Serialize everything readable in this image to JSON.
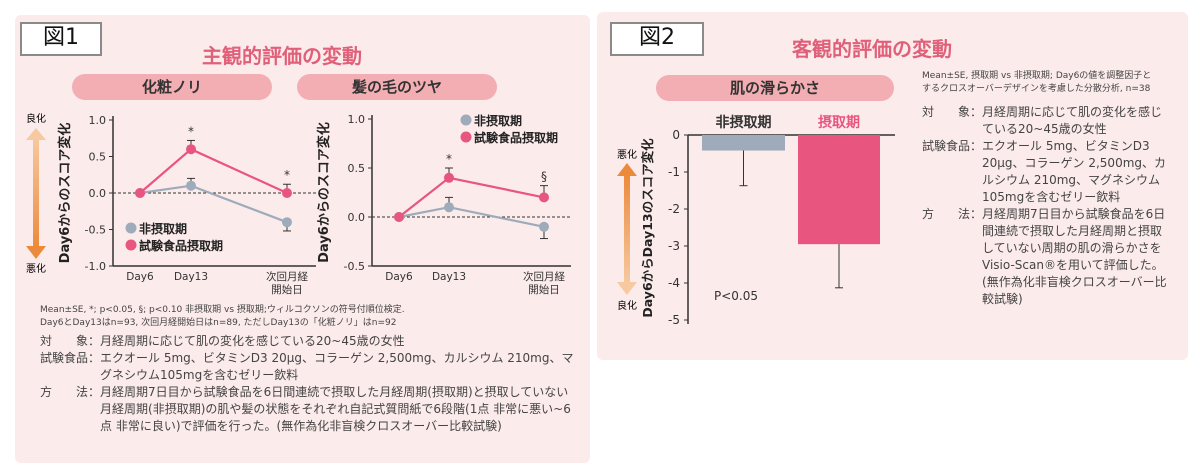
{
  "figure1": {
    "label": "図1",
    "title": "主観的評価の変動",
    "note_lines": [
      "Mean±SE, *; p<0.05, §; p<0.10 非摂取期 vs 摂取期;ウィルコクソンの符号付順位検定.",
      "Day6とDay13はn=93, 次回月経開始日はn=89, ただしDay13の「化粧ノリ」はn=92"
    ],
    "details": [
      {
        "key": "対　　象：",
        "value": "月経周期に応じて肌の変化を感じている20~45歳の女性"
      },
      {
        "key": "試験食品：",
        "value": "エクオール 5mg、ビタミンD3 20μg、コラーゲン 2,500mg、カルシウム 210mg、マグネシウム105mgを含むゼリー飲料"
      },
      {
        "key": "方　　法：",
        "value": "月経周期7日目から試験食品を6日間連続で摂取した月経周期(摂取期)と摂取していない月経周期(非摂取期)の肌や髪の状態をそれぞれ自記式質問紙で6段階(1点 非常に悪い~6点 非常に良い)で評価を行った。(無作為化非盲検クロスオーバー比較試験)"
      }
    ],
    "arrow_top": "良化",
    "arrow_bottom": "悪化"
  },
  "figure2": {
    "label": "図2",
    "title": "客観的評価の変動",
    "note_lines": [
      "Mean±SE, 摂取期 vs 非摂取期; Day6の値を調整因子と",
      "するクロスオーバーデザインを考慮した分散分析, n=38"
    ],
    "details": [
      {
        "key": "対　　象：",
        "value": "月経周期に応じて肌の変化を感じている20~45歳の女性"
      },
      {
        "key": "試験食品：",
        "value": "エクオール 5mg、ビタミンD3 20μg、コラーゲン 2,500mg、カルシウム 210mg、マグネシウム105mgを含むゼリー飲料"
      },
      {
        "key": "方　　法：",
        "value": "月経周期7日目から試験食品を6日間連続で摂取した月経周期と摂取していない周期の肌の滑らかさをVisio-Scan®を用いて評価した。(無作為化非盲検クロスオーバー比較試験)"
      }
    ],
    "arrow_top": "悪化",
    "arrow_bottom": "良化"
  },
  "colors": {
    "test": "#e8557f",
    "control": "#9eabbb",
    "title": "#e0607a",
    "arrow": "#f0a060"
  },
  "chart_data": [
    {
      "type": "line",
      "title": "化粧ノリ",
      "ylabel": "Day6からのスコア変化",
      "categories": [
        "Day6",
        "Day13",
        "次回月経開始日"
      ],
      "category_lines": [
        [
          "Day6"
        ],
        [
          "Day13"
        ],
        [
          "次回月経",
          "開始日"
        ]
      ],
      "ylim": [
        -1.0,
        1.0
      ],
      "yticks": [
        "1.0",
        "0.5",
        "0.0",
        "-0.5",
        "-1.0"
      ],
      "legend": "bottom-left",
      "series": [
        {
          "name": "非摂取期",
          "values": [
            0,
            0.1,
            -0.4
          ],
          "se": [
            0,
            0.1,
            0.12
          ],
          "marks": [
            "",
            "",
            ""
          ]
        },
        {
          "name": "試験食品摂取期",
          "values": [
            0,
            0.6,
            0.0
          ],
          "se": [
            0,
            0.12,
            0.12
          ],
          "marks": [
            "",
            "*",
            "*"
          ]
        }
      ]
    },
    {
      "type": "line",
      "title": "髪の毛のツヤ",
      "ylabel": "Day6からのスコア変化",
      "categories": [
        "Day6",
        "Day13",
        "次回月経開始日"
      ],
      "category_lines": [
        [
          "Day6"
        ],
        [
          "Day13"
        ],
        [
          "次回月経",
          "開始日"
        ]
      ],
      "ylim": [
        -0.5,
        1.0
      ],
      "yticks": [
        "1.0",
        "0.5",
        "0.0",
        "-0.5"
      ],
      "legend": "top-right",
      "series": [
        {
          "name": "非摂取期",
          "values": [
            0,
            0.1,
            -0.1
          ],
          "se": [
            0,
            0.1,
            0.12
          ],
          "marks": [
            "",
            "",
            ""
          ]
        },
        {
          "name": "試験食品摂取期",
          "values": [
            0,
            0.4,
            0.2
          ],
          "se": [
            0,
            0.1,
            0.12
          ],
          "marks": [
            "",
            "*",
            "§"
          ]
        }
      ]
    },
    {
      "type": "bar",
      "title": "肌の滑らかさ",
      "ylabel": "Day6からDay13のスコア変化",
      "categories": [
        "非摂取期",
        "摂取期"
      ],
      "values": [
        -0.42,
        -2.95
      ],
      "se": [
        0.95,
        1.18
      ],
      "ylim": [
        -5,
        0
      ],
      "yticks": [
        "0",
        "-1",
        "-2",
        "-3",
        "-4",
        "-5"
      ],
      "annotation": "P<0.05"
    }
  ]
}
